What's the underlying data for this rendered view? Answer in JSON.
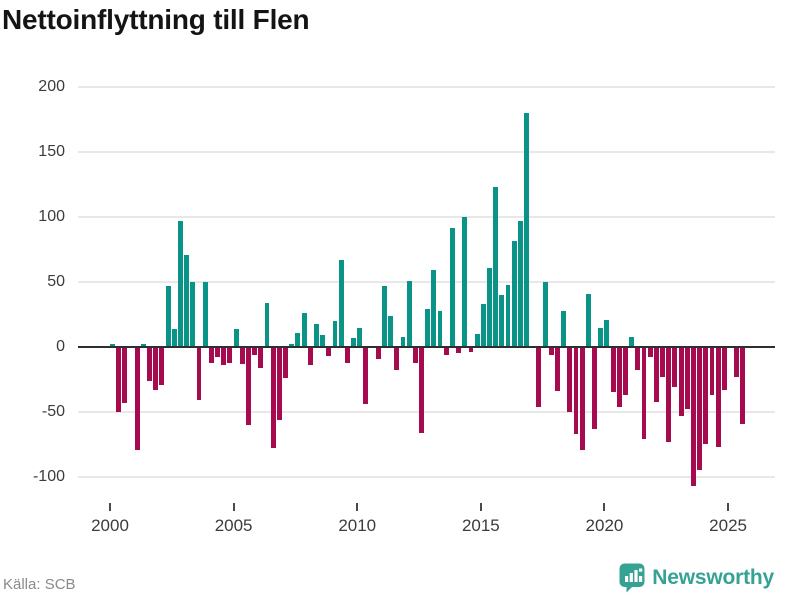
{
  "title": "Nettoinflyttning till Flen",
  "source": "Källa: SCB",
  "brand": {
    "name": "Newsworthy"
  },
  "colors": {
    "positive": "#0a9488",
    "negative": "#a50b4e",
    "brand": "#35a294",
    "grid": "#e8e8e8",
    "zero_line": "#2f2f2f",
    "text": "#3c3c3c"
  },
  "y_axis": {
    "ticks": [
      200,
      150,
      100,
      50,
      0,
      -50,
      -100
    ]
  },
  "x_axis": {
    "ticks": [
      2000,
      2005,
      2010,
      2015,
      2020,
      2025
    ]
  },
  "chart_data": {
    "type": "bar",
    "title": "Nettoinflyttning till Flen",
    "xlabel": "",
    "ylabel": "",
    "frequency": "quarterly",
    "x_start": "2000-Q1",
    "x_end": "2025-Q3",
    "ylim": [
      -120,
      210
    ],
    "grid": "horizontal",
    "legend": "none",
    "series": [
      {
        "name": "Nettoinflyttning",
        "values": [
          2,
          -50,
          -43,
          0,
          -79,
          2,
          -26,
          -33,
          -29,
          47,
          14,
          97,
          71,
          50,
          -41,
          50,
          -12,
          -8,
          -14,
          -12,
          14,
          -13,
          -60,
          -6,
          -16,
          34,
          -78,
          -56,
          -24,
          2,
          11,
          26,
          -14,
          18,
          9,
          -7,
          20,
          67,
          -12,
          7,
          15,
          -44,
          0,
          -9,
          47,
          24,
          -18,
          8,
          51,
          -12,
          -66,
          29,
          59,
          28,
          -6,
          92,
          -5,
          100,
          -4,
          10,
          33,
          61,
          123,
          40,
          48,
          82,
          97,
          180,
          0,
          -46,
          50,
          -6,
          -34,
          28,
          -50,
          -67,
          -79,
          41,
          -63,
          15,
          21,
          -35,
          -46,
          -37,
          8,
          -18,
          -71,
          -8,
          -42,
          -23,
          -73,
          -31,
          -53,
          -48,
          -107,
          -95,
          -75,
          -37,
          -77,
          -33,
          0,
          -23,
          -59
        ]
      }
    ]
  }
}
